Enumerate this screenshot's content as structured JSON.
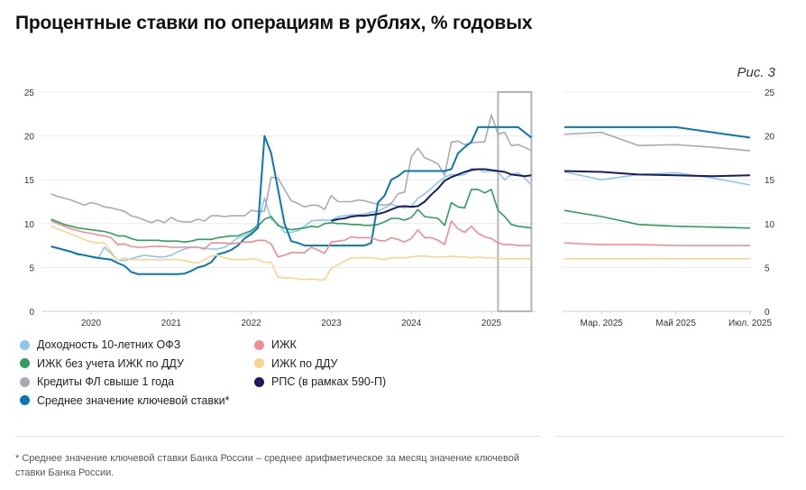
{
  "title": "Процентные ставки по операциям в рублях, % годовых",
  "figure_label": "Рис. 3",
  "footnote": "* Среднее значение ключевой ставки Банка России – среднее арифметическое за месяц значение ключевой ставки Банка России.",
  "chart_data": [
    {
      "type": "line",
      "x_start": "2019-07",
      "x_end": "2025-07",
      "x_frequency": "monthly",
      "x_tick_labels": [
        "2020",
        "2021",
        "2022",
        "2023",
        "2024",
        "2025"
      ],
      "y_tick_labels": [
        "0",
        "5",
        "10",
        "15",
        "20",
        "25"
      ],
      "ylim": [
        0,
        25
      ],
      "grid": "horizontal",
      "highlight_range": [
        "2025-02",
        "2025-07"
      ],
      "series": [
        {
          "name": "Доходность 10-летних ОФЗ",
          "color": "#8cc8ec",
          "start": "2019-07",
          "values": [
            7.4,
            7.2,
            7.0,
            6.8,
            6.6,
            6.4,
            6.2,
            6.0,
            7.3,
            6.6,
            5.8,
            5.8,
            6.0,
            6.2,
            6.4,
            6.3,
            6.2,
            6.2,
            6.4,
            6.8,
            7.1,
            7.3,
            7.3,
            7.2,
            7.1,
            7.1,
            7.3,
            7.8,
            8.4,
            8.6,
            9.0,
            10.0,
            12.9,
            10.5,
            10.0,
            9.0,
            9.0,
            9.2,
            9.7,
            10.3,
            10.4,
            10.4,
            10.4,
            10.8,
            10.9,
            11.0,
            11.0,
            11.1,
            11.3,
            11.4,
            11.8,
            12.2,
            12.0,
            11.8,
            12.0,
            12.9,
            13.4,
            14.0,
            14.7,
            15.3,
            15.6,
            15.5,
            15.6,
            16.3,
            16.2,
            15.9,
            16.0,
            15.9,
            15.0,
            15.6,
            15.8,
            15.2,
            14.4
          ]
        },
        {
          "name": "ИЖК без учета ИЖК по ДДУ",
          "color": "#2e9e5b",
          "start": "2019-07",
          "values": [
            10.5,
            10.2,
            9.9,
            9.7,
            9.5,
            9.4,
            9.3,
            9.2,
            9.1,
            8.9,
            8.6,
            8.6,
            8.3,
            8.1,
            8.1,
            8.1,
            8.1,
            8.0,
            8.0,
            8.0,
            7.9,
            8.0,
            8.2,
            8.2,
            8.2,
            8.4,
            8.5,
            8.6,
            8.6,
            8.9,
            9.2,
            9.7,
            10.5,
            10.8,
            9.8,
            9.5,
            9.3,
            9.4,
            9.5,
            9.7,
            9.6,
            10.0,
            10.1,
            10.0,
            10.0,
            9.9,
            9.9,
            9.8,
            9.8,
            9.9,
            10.2,
            10.6,
            10.6,
            10.4,
            10.7,
            11.6,
            10.8,
            10.7,
            10.6,
            9.8,
            12.4,
            11.9,
            11.8,
            13.9,
            13.9,
            13.5,
            13.9,
            11.5,
            10.8,
            9.9,
            9.7,
            9.6,
            9.5
          ]
        },
        {
          "name": "Кредиты ФЛ свыше 1 года",
          "color": "#a9abb3",
          "start": "2019-07",
          "values": [
            13.4,
            13.1,
            12.9,
            12.7,
            12.4,
            12.1,
            12.4,
            12.2,
            11.9,
            11.8,
            11.6,
            11.4,
            10.9,
            10.7,
            10.4,
            10.1,
            10.4,
            10.1,
            10.7,
            10.3,
            10.2,
            10.2,
            10.5,
            10.3,
            10.9,
            10.9,
            10.8,
            10.9,
            10.9,
            10.9,
            11.5,
            11.4,
            11.4,
            15.3,
            15.2,
            13.9,
            12.6,
            12.3,
            11.9,
            12.1,
            12.1,
            11.6,
            13.2,
            12.5,
            12.5,
            12.5,
            12.7,
            12.6,
            12.4,
            12.2,
            12.1,
            12.3,
            13.4,
            13.6,
            17.6,
            18.6,
            17.5,
            17.2,
            16.8,
            15.5,
            19.3,
            19.4,
            19.0,
            19.2,
            19.3,
            19.3,
            22.4,
            20.2,
            20.4,
            18.9,
            19.0,
            18.7,
            18.3
          ]
        },
        {
          "name": "Среднее значение ключевой ставки*",
          "color": "#0a78b0",
          "start": "2019-07",
          "values": [
            7.4,
            7.2,
            7.0,
            6.8,
            6.5,
            6.4,
            6.25,
            6.1,
            6.0,
            5.9,
            5.5,
            5.2,
            4.5,
            4.25,
            4.25,
            4.25,
            4.25,
            4.25,
            4.25,
            4.25,
            4.3,
            4.6,
            5.0,
            5.2,
            5.6,
            6.5,
            6.7,
            7.0,
            7.5,
            8.3,
            8.8,
            9.5,
            20.0,
            18.0,
            14.0,
            10.0,
            8.0,
            7.8,
            7.5,
            7.5,
            7.5,
            7.5,
            7.5,
            7.5,
            7.5,
            7.5,
            7.5,
            7.5,
            7.8,
            12.4,
            13.2,
            15.0,
            15.4,
            16.0,
            16.0,
            16.0,
            16.0,
            16.0,
            16.0,
            16.0,
            16.2,
            18.0,
            18.7,
            19.3,
            21.0,
            21.0,
            21.0,
            21.0,
            21.0,
            21.0,
            21.0,
            20.4,
            19.8
          ]
        },
        {
          "name": "ИЖК",
          "color": "#ee8e94",
          "start": "2019-07",
          "values": [
            10.3,
            10.0,
            9.7,
            9.4,
            9.2,
            9.0,
            8.9,
            8.7,
            8.6,
            8.4,
            7.6,
            7.7,
            7.4,
            7.3,
            7.3,
            7.4,
            7.4,
            7.4,
            7.3,
            7.3,
            7.3,
            7.3,
            7.3,
            7.1,
            7.8,
            7.8,
            7.8,
            7.7,
            7.8,
            7.9,
            7.9,
            8.1,
            8.1,
            7.7,
            6.2,
            6.4,
            6.7,
            6.7,
            6.7,
            7.3,
            7.0,
            6.6,
            7.9,
            8.0,
            8.1,
            8.5,
            8.4,
            8.4,
            8.4,
            8.1,
            8.0,
            8.4,
            8.2,
            7.9,
            8.3,
            9.3,
            8.4,
            8.4,
            8.1,
            7.6,
            10.3,
            9.4,
            9.0,
            9.7,
            8.9,
            8.5,
            8.3,
            7.8,
            7.6,
            7.6,
            7.5,
            7.5,
            7.5
          ]
        },
        {
          "name": "ИЖК по ДДУ",
          "color": "#f9d48f",
          "start": "2019-07",
          "values": [
            9.7,
            9.4,
            9.1,
            8.8,
            8.5,
            8.2,
            7.9,
            7.8,
            7.8,
            6.8,
            5.8,
            6.1,
            5.9,
            5.9,
            5.9,
            5.9,
            5.9,
            5.9,
            5.9,
            5.9,
            5.8,
            5.6,
            5.5,
            5.9,
            6.3,
            6.4,
            6.1,
            5.9,
            5.9,
            5.9,
            6.0,
            5.9,
            5.6,
            5.6,
            3.9,
            3.8,
            3.8,
            3.7,
            3.6,
            3.7,
            3.6,
            3.6,
            4.9,
            5.3,
            5.7,
            6.1,
            6.1,
            6.1,
            6.1,
            6.0,
            5.9,
            6.1,
            6.1,
            6.1,
            6.2,
            6.3,
            6.3,
            6.2,
            6.2,
            6.2,
            6.3,
            6.2,
            6.2,
            6.1,
            6.2,
            6.1,
            6.1,
            6.0,
            6.0,
            6.0,
            6.0,
            6.0,
            6.0
          ]
        },
        {
          "name": "РПС (в рамках 590-П)",
          "color": "#1e1c5c",
          "start": "2023-01",
          "values": [
            10.3,
            10.5,
            10.6,
            10.8,
            10.9,
            10.9,
            11.0,
            11.1,
            11.3,
            11.6,
            11.9,
            12.0,
            11.9,
            12.0,
            12.5,
            13.3,
            14.0,
            14.9,
            15.3,
            15.6,
            15.9,
            16.1,
            16.2,
            16.2,
            16.1,
            16.0,
            15.9,
            15.6,
            15.5,
            15.4,
            15.5
          ]
        }
      ]
    },
    {
      "type": "line",
      "x_start": "2025-02",
      "x_end": "2025-07",
      "x_tick_labels": [
        "Мар. 2025",
        "Май 2025",
        "Июл. 2025"
      ],
      "y_tick_labels": [
        "0",
        "5",
        "10",
        "15",
        "20",
        "25"
      ],
      "ylim": [
        0,
        25
      ],
      "grid": "horizontal",
      "series_source": "same series as main chart, zoomed to 2025-02 … 2025-07"
    }
  ],
  "legend": {
    "items": [
      {
        "label": "Доходность 10-летних ОФЗ",
        "color": "#8cc8ec"
      },
      {
        "label": "ИЖК",
        "color": "#ee8e94"
      },
      {
        "label": "ИЖК без учета ИЖК по ДДУ",
        "color": "#2e9e5b"
      },
      {
        "label": "ИЖК по ДДУ",
        "color": "#f9d48f"
      },
      {
        "label": "Кредиты ФЛ свыше 1 года",
        "color": "#a9abb3"
      },
      {
        "label": "РПС (в рамках 590-П)",
        "color": "#1e1c5c"
      },
      {
        "label": "Среднее значение ключевой ставки*",
        "color": "#0a78b0"
      }
    ]
  }
}
